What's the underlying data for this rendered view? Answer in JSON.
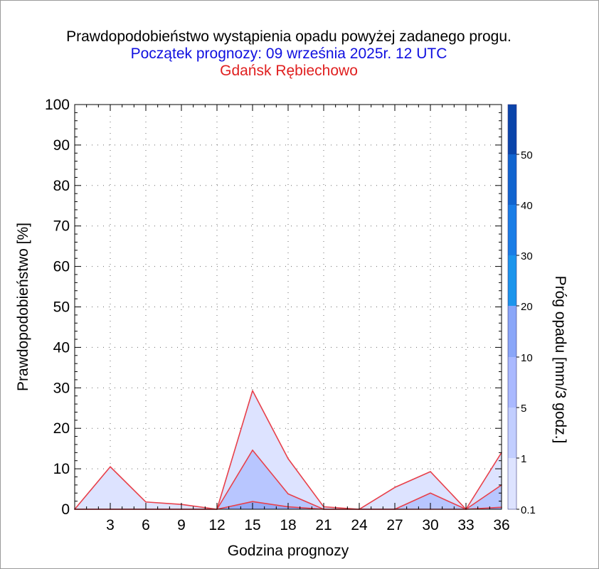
{
  "colors": {
    "title": "#000000",
    "subtitle": "#1010e0",
    "station": "#e02020",
    "series_line": "#e8404a",
    "tick": "#000000",
    "grid_dot": "#6a6a6a"
  },
  "legend": {
    "label": "Próg opadu [mm/3 godz.]",
    "ticks": [
      "0.1",
      "1",
      "5",
      "10",
      "20",
      "30",
      "40",
      "50"
    ],
    "bands": [
      {
        "from": "0.1",
        "to": "1",
        "color": "#dde3ff"
      },
      {
        "from": "1",
        "to": "5",
        "color": "#c2ceff"
      },
      {
        "from": "5",
        "to": "10",
        "color": "#aab9ff"
      },
      {
        "from": "10",
        "to": "20",
        "color": "#8aa6f8"
      },
      {
        "from": "20",
        "to": "30",
        "color": "#1c95ec"
      },
      {
        "from": "30",
        "to": "40",
        "color": "#1a7de6"
      },
      {
        "from": "40",
        "to": "50",
        "color": "#1164cf"
      },
      {
        "from": "50",
        "to": "",
        "color": "#0a44aa"
      }
    ]
  },
  "chart_data": {
    "type": "area",
    "title": "Prawdopodobieństwo wystąpienia opadu powyżej zadanego progu.",
    "subtitle": "Początek prognozy: 09 września 2025r. 12 UTC",
    "station": "Gdańsk Rębiechowo",
    "xlabel": "Godzina prognozy",
    "ylabel": "Prawdopodobieństwo [%]",
    "xlim": [
      0,
      36
    ],
    "ylim": [
      0,
      100
    ],
    "xticks": [
      3,
      6,
      9,
      12,
      15,
      18,
      21,
      24,
      27,
      30,
      33,
      36
    ],
    "yticks": [
      0,
      10,
      20,
      30,
      40,
      50,
      60,
      70,
      80,
      90,
      100
    ],
    "x": [
      0,
      3,
      6,
      9,
      12,
      15,
      18,
      21,
      24,
      27,
      30,
      33,
      36
    ],
    "series": [
      {
        "threshold": "0.1",
        "color": "#dde3ff",
        "values": [
          0,
          10.5,
          1.8,
          1.2,
          0,
          29.3,
          12.5,
          0.6,
          0,
          5.4,
          9.3,
          0,
          14
        ]
      },
      {
        "threshold": "1",
        "color": "#b8c6ff",
        "values": [
          0,
          0,
          0,
          0,
          0,
          14.6,
          3.8,
          0,
          0,
          0,
          4,
          0,
          6
        ]
      },
      {
        "threshold": "5",
        "color": "#93a9f6",
        "values": [
          0,
          0,
          0,
          0,
          0,
          1.9,
          0.6,
          0,
          0,
          0,
          0,
          0,
          0.5
        ]
      }
    ],
    "grid": "dotted"
  }
}
